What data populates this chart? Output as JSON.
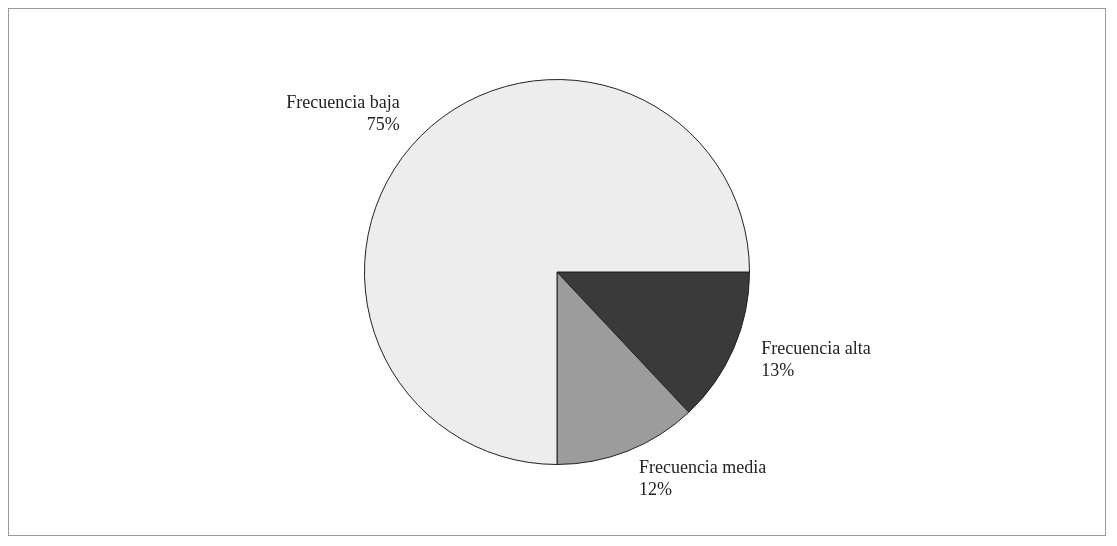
{
  "chart_data": {
    "type": "pie",
    "categories": [
      "Frecuencia alta",
      "Frecuencia media",
      "Frecuencia baja"
    ],
    "values": [
      13,
      12,
      75
    ],
    "value_labels": [
      "13%",
      "12%",
      "75%"
    ],
    "colors": [
      "#3a3a3a",
      "#9c9c9c",
      "#ededed"
    ],
    "legend": false
  }
}
